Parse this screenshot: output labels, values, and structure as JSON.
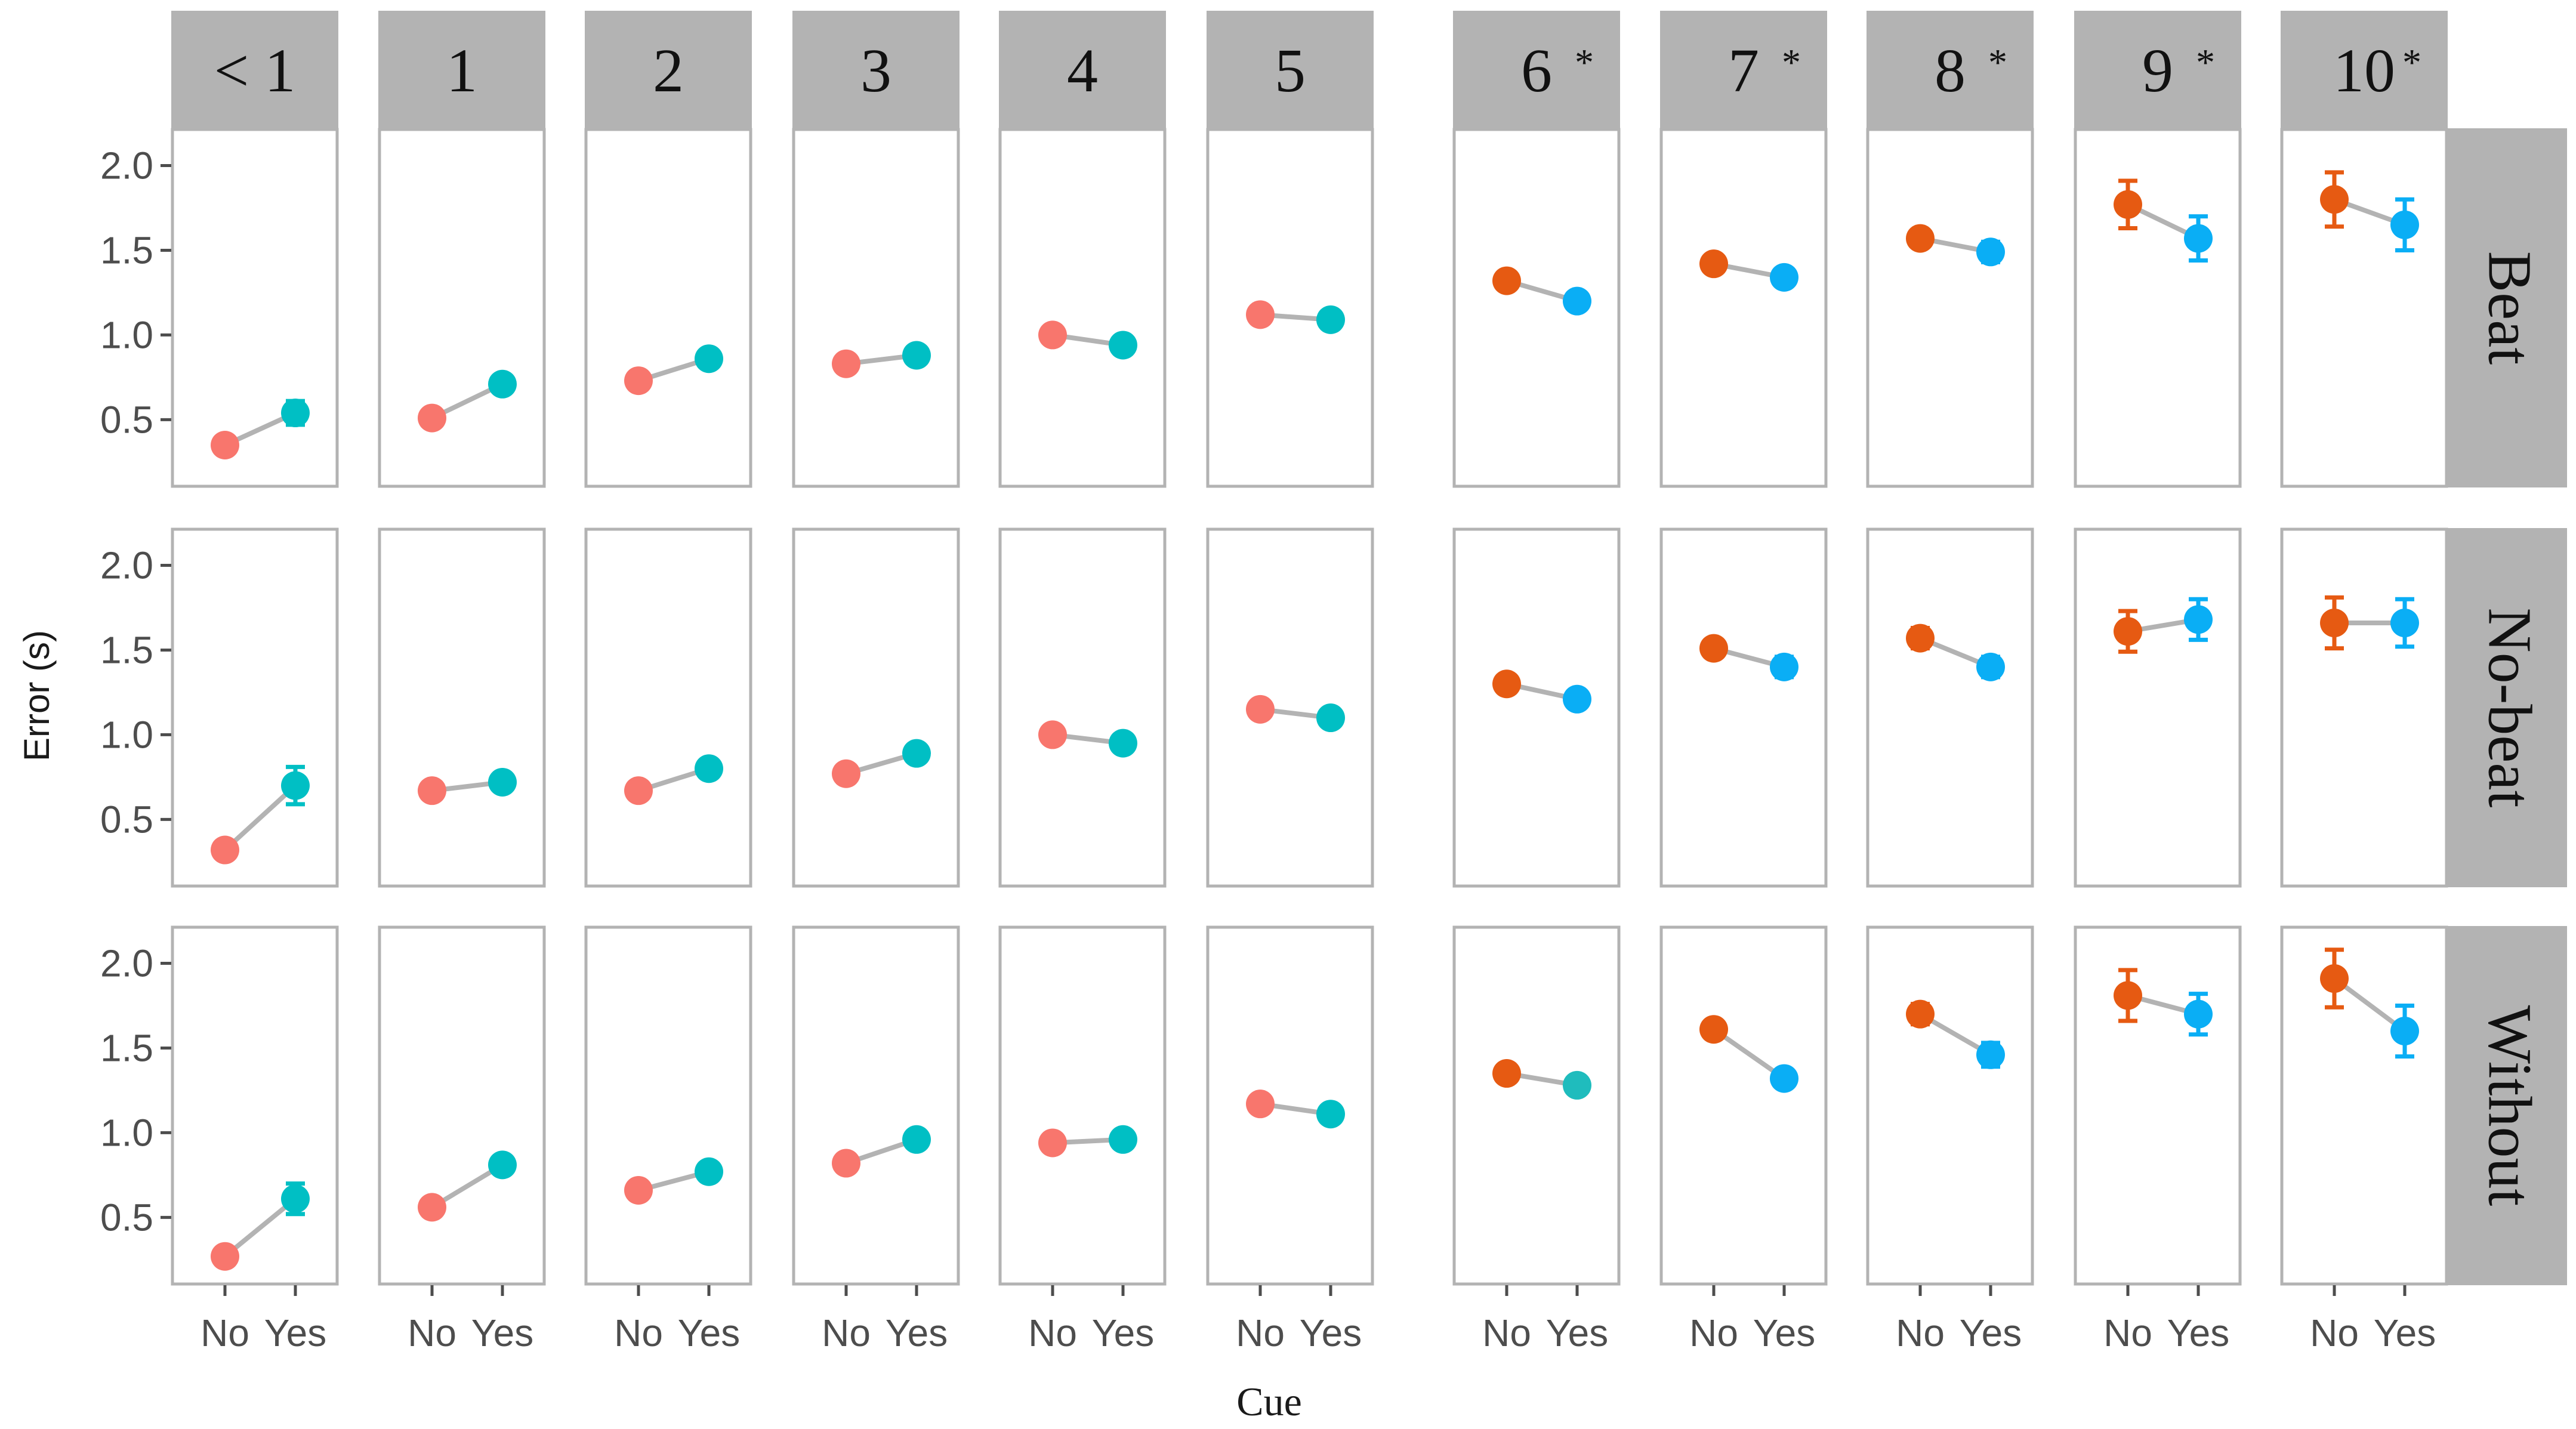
{
  "chart_data": {
    "type": "scatter",
    "xlabel": "Cue",
    "ylabel": "Error (s)",
    "x_categories": [
      "No",
      "Yes"
    ],
    "ylim": [
      0.1,
      2.22
    ],
    "y_ticks": [
      0.5,
      1.0,
      1.5,
      2.0
    ],
    "y_tick_labels": [
      "0.5",
      "1.0",
      "1.5",
      "2.0"
    ],
    "grid": false,
    "columns": [
      {
        "label": "< 1",
        "star": false,
        "highlight": false
      },
      {
        "label": "1",
        "star": false,
        "highlight": false
      },
      {
        "label": "2",
        "star": false,
        "highlight": false
      },
      {
        "label": "3",
        "star": false,
        "highlight": false
      },
      {
        "label": "4",
        "star": false,
        "highlight": false
      },
      {
        "label": "5",
        "star": false,
        "highlight": false
      },
      {
        "label": "6",
        "star": true,
        "highlight": true
      },
      {
        "label": "7",
        "star": true,
        "highlight": true
      },
      {
        "label": "8",
        "star": true,
        "highlight": true
      },
      {
        "label": "9",
        "star": true,
        "highlight": true
      },
      {
        "label": "10",
        "star": true,
        "highlight": true
      }
    ],
    "star_symbol": "*",
    "rows": [
      {
        "label": "Beat",
        "values": [
          {
            "no": [
              0.35,
              0.0
            ],
            "yes": [
              0.54,
              0.07
            ]
          },
          {
            "no": [
              0.51,
              0.0
            ],
            "yes": [
              0.71,
              0.04
            ]
          },
          {
            "no": [
              0.73,
              0.0
            ],
            "yes": [
              0.86,
              0.03
            ]
          },
          {
            "no": [
              0.83,
              0.0
            ],
            "yes": [
              0.88,
              0.03
            ]
          },
          {
            "no": [
              1.0,
              0.0
            ],
            "yes": [
              0.94,
              0.03
            ]
          },
          {
            "no": [
              1.12,
              0.0
            ],
            "yes": [
              1.09,
              0.04
            ]
          },
          {
            "no": [
              1.32,
              0.03
            ],
            "yes": [
              1.2,
              0.04
            ]
          },
          {
            "no": [
              1.42,
              0.04
            ],
            "yes": [
              1.34,
              0.04
            ]
          },
          {
            "no": [
              1.57,
              0.05
            ],
            "yes": [
              1.49,
              0.06
            ]
          },
          {
            "no": [
              1.77,
              0.14
            ],
            "yes": [
              1.57,
              0.13
            ]
          },
          {
            "no": [
              1.8,
              0.16
            ],
            "yes": [
              1.65,
              0.15
            ]
          }
        ]
      },
      {
        "label": "No-beat",
        "values": [
          {
            "no": [
              0.32,
              0.0
            ],
            "yes": [
              0.7,
              0.11
            ]
          },
          {
            "no": [
              0.67,
              0.0
            ],
            "yes": [
              0.72,
              0.03
            ]
          },
          {
            "no": [
              0.67,
              0.0
            ],
            "yes": [
              0.8,
              0.03
            ]
          },
          {
            "no": [
              0.77,
              0.0
            ],
            "yes": [
              0.89,
              0.04
            ]
          },
          {
            "no": [
              1.0,
              0.0
            ],
            "yes": [
              0.95,
              0.03
            ]
          },
          {
            "no": [
              1.15,
              0.0
            ],
            "yes": [
              1.1,
              0.04
            ]
          },
          {
            "no": [
              1.3,
              0.03
            ],
            "yes": [
              1.21,
              0.05
            ]
          },
          {
            "no": [
              1.51,
              0.05
            ],
            "yes": [
              1.4,
              0.06
            ]
          },
          {
            "no": [
              1.57,
              0.06
            ],
            "yes": [
              1.4,
              0.06
            ]
          },
          {
            "no": [
              1.61,
              0.12
            ],
            "yes": [
              1.68,
              0.12
            ]
          },
          {
            "no": [
              1.66,
              0.15
            ],
            "yes": [
              1.66,
              0.14
            ]
          }
        ]
      },
      {
        "label": "Without",
        "values": [
          {
            "no": [
              0.27,
              0.0
            ],
            "yes": [
              0.61,
              0.09
            ]
          },
          {
            "no": [
              0.56,
              0.0
            ],
            "yes": [
              0.81,
              0.05
            ]
          },
          {
            "no": [
              0.66,
              0.0
            ],
            "yes": [
              0.77,
              0.04
            ]
          },
          {
            "no": [
              0.82,
              0.0
            ],
            "yes": [
              0.96,
              0.04
            ]
          },
          {
            "no": [
              0.94,
              0.0
            ],
            "yes": [
              0.96,
              0.03
            ]
          },
          {
            "no": [
              1.17,
              0.0
            ],
            "yes": [
              1.11,
              0.04
            ]
          },
          {
            "no": [
              1.35,
              0.05
            ],
            "yes": [
              1.28,
              0.04
            ]
          },
          {
            "no": [
              1.61,
              0.05
            ],
            "yes": [
              1.32,
              0.05
            ]
          },
          {
            "no": [
              1.7,
              0.06
            ],
            "yes": [
              1.46,
              0.07
            ]
          },
          {
            "no": [
              1.81,
              0.15
            ],
            "yes": [
              1.7,
              0.12
            ]
          },
          {
            "no": [
              1.91,
              0.17
            ],
            "yes": [
              1.6,
              0.15
            ]
          }
        ]
      }
    ],
    "colors": {
      "no_plain": "#f8766d",
      "yes_plain": "#00bfc4",
      "no_highlight": "#e65a12",
      "yes_highlight": "#0aaef5",
      "yes_teal_exception": "#1fbcbd",
      "connector": "#b3b3b3",
      "strip_fill": "#b3b3b3",
      "panel_border": "#b3b3b3"
    }
  }
}
